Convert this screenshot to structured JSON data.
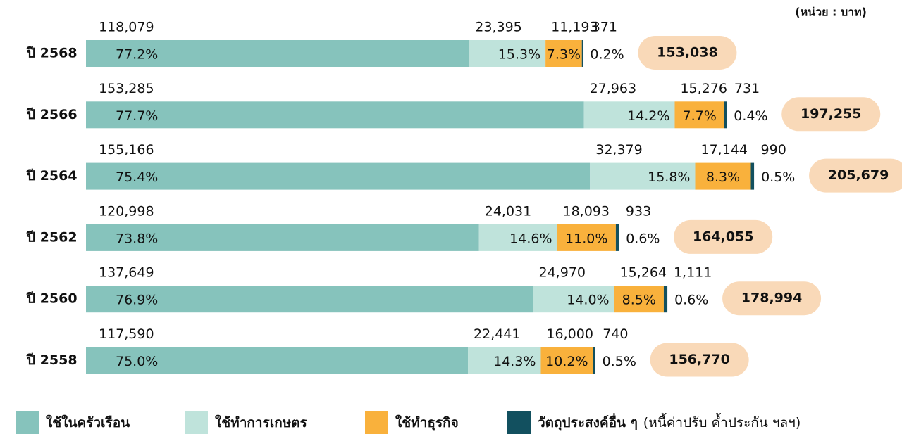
{
  "chart_data": {
    "type": "stacked-barh",
    "unit_label": "(หน่วย : บาท)",
    "categories": [
      "ปี 2568",
      "ปี 2566",
      "ปี 2564",
      "ปี 2562",
      "ปี 2560",
      "ปี 2558"
    ],
    "series": [
      {
        "name": "ใช้ในครัวเรือน",
        "color": "#86c3bc",
        "values": [
          118079,
          153285,
          155166,
          120998,
          137649,
          117590
        ],
        "value_labels": [
          "118,079",
          "153,285",
          "155,166",
          "120,998",
          "137,649",
          "117,590"
        ],
        "percent_labels": [
          "77.2%",
          "77.7%",
          "75.4%",
          "73.8%",
          "76.9%",
          "75.0%"
        ]
      },
      {
        "name": "ใช้ทำการเกษตร",
        "color": "#bfe3db",
        "values": [
          23395,
          27963,
          32379,
          24031,
          24970,
          22441
        ],
        "value_labels": [
          "23,395",
          "27,963",
          "32,379",
          "24,031",
          "24,970",
          "22,441"
        ],
        "percent_labels": [
          "15.3%",
          "14.2%",
          "15.8%",
          "14.6%",
          "14.0%",
          "14.3%"
        ]
      },
      {
        "name": "ใช้ทำธุรกิจ",
        "color": "#f9b13c",
        "values": [
          11193,
          15276,
          17144,
          18093,
          15264,
          16000
        ],
        "value_labels": [
          "11,193",
          "15,276",
          "17,144",
          "18,093",
          "15,264",
          "16,000"
        ],
        "percent_labels": [
          "7.3%",
          "7.7%",
          "8.3%",
          "11.0%",
          "8.5%",
          "10.2%"
        ]
      },
      {
        "name": "วัตถุประสงค์อื่น ๆ",
        "color": "#12505f",
        "values": [
          371,
          731,
          990,
          933,
          1111,
          740
        ],
        "value_labels": [
          "371",
          "731",
          "990",
          "933",
          "1,111",
          "740"
        ],
        "percent_labels": [
          "0.2%",
          "0.4%",
          "0.5%",
          "0.6%",
          "0.6%",
          "0.5%"
        ]
      }
    ],
    "legend_note": "(หนี้ค่าปรับ ค้ำประกัน ฯลฯ)",
    "totals": [
      153038,
      197255,
      205679,
      164055,
      178994,
      156770
    ],
    "total_labels": [
      "153,038",
      "197,255",
      "205,679",
      "164,055",
      "178,994",
      "156,770"
    ],
    "total_color": "#f9d9b8",
    "xlim": [
      0,
      210000
    ]
  }
}
